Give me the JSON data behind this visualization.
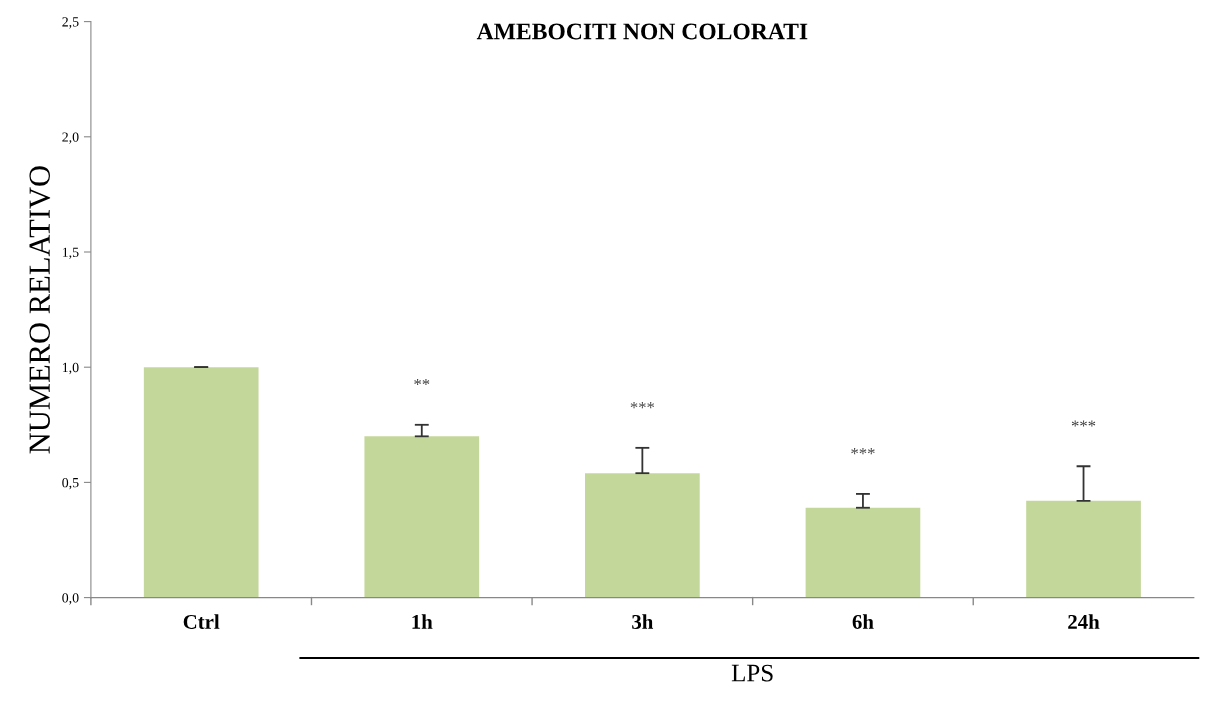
{
  "chart_data": {
    "type": "bar",
    "title": "AMEBOCITI NON COLORATI",
    "ylabel": "NUMERO RELATIVO",
    "categories": [
      "Ctrl",
      "1h",
      "3h",
      "6h",
      "24h"
    ],
    "values": [
      1.0,
      0.7,
      0.54,
      0.39,
      0.42
    ],
    "errors": [
      [
        1.0,
        1.0
      ],
      [
        0.7,
        0.75
      ],
      [
        0.54,
        0.65
      ],
      [
        0.39,
        0.45
      ],
      [
        0.42,
        0.57
      ]
    ],
    "color": "#c4d79b",
    "ylim": [
      0,
      2.5
    ],
    "yticks": [
      {
        "value": 0,
        "label": "0,0"
      },
      {
        "value": 0.5,
        "label": "0,5"
      },
      {
        "value": 1.0,
        "label": "1,0"
      },
      {
        "value": 1.5,
        "label": "1,5"
      },
      {
        "value": 2.0,
        "label": "2,0"
      },
      {
        "value": 2.5,
        "label": "2,5"
      }
    ],
    "grid": false,
    "legend": false,
    "annotations": [
      "**",
      "***",
      "***",
      "***",
      "LPS"
    ]
  }
}
